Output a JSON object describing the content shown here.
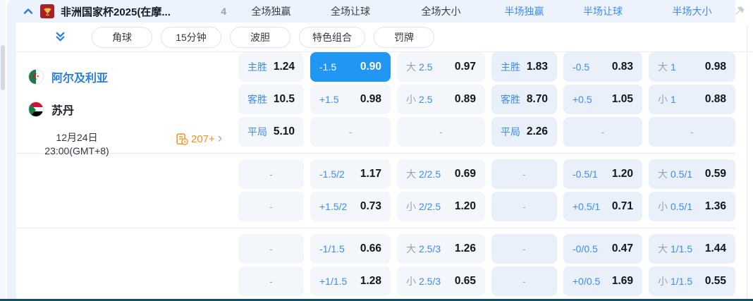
{
  "header": {
    "league": "非洲国家杯2025(在摩...",
    "match_count": "4",
    "columns": [
      {
        "label": "全场独赢",
        "scope": "full"
      },
      {
        "label": "全场让球",
        "scope": "full"
      },
      {
        "label": "全场大小",
        "scope": "full"
      },
      {
        "label": "半场独赢",
        "scope": "half"
      },
      {
        "label": "半场让球",
        "scope": "half"
      },
      {
        "label": "半场大小",
        "scope": "half"
      }
    ]
  },
  "tabs": [
    {
      "label": "角球"
    },
    {
      "label": "15分钟"
    },
    {
      "label": "波胆"
    },
    {
      "label": "特色组合"
    },
    {
      "label": "罚牌"
    }
  ],
  "match": {
    "home_team": "阿尔及利亚",
    "away_team": "苏丹",
    "date": "12月24日",
    "time": "23:00(GMT+8)",
    "more_markets": "207+"
  },
  "colors": {
    "selected_cell": "#2196f3",
    "label_blue": "#3d8bf8",
    "more_orange": "#f78f1e",
    "topbar_bg": "#edf3fc"
  },
  "odds_groups": [
    {
      "rows": [
        [
          {
            "label": "主胜",
            "value": "1.24"
          },
          {
            "label": "-1.5",
            "value": "0.90",
            "selected": true
          },
          {
            "prefix": "大",
            "label": "2.5",
            "value": "0.97"
          },
          {
            "label": "主胜",
            "value": "1.83"
          },
          {
            "label": "-0.5",
            "value": "0.83"
          },
          {
            "prefix": "大",
            "label": "1",
            "value": "0.98"
          }
        ],
        [
          {
            "label": "客胜",
            "value": "10.5"
          },
          {
            "label": "+1.5",
            "value": "0.98"
          },
          {
            "prefix": "小",
            "label": "2.5",
            "value": "0.89"
          },
          {
            "label": "客胜",
            "value": "8.70"
          },
          {
            "label": "+0.5",
            "value": "1.05"
          },
          {
            "prefix": "小",
            "label": "1",
            "value": "0.88"
          }
        ],
        [
          {
            "label": "平局",
            "value": "5.10"
          },
          {
            "dash": true
          },
          {
            "dash": true
          },
          {
            "label": "平局",
            "value": "2.26"
          },
          {
            "dash": true
          },
          {
            "dash": true
          }
        ]
      ]
    },
    {
      "rows": [
        [
          {
            "dash": true
          },
          {
            "label": "-1.5/2",
            "value": "1.17"
          },
          {
            "prefix": "大",
            "label": "2/2.5",
            "value": "0.69"
          },
          {
            "dash": true
          },
          {
            "label": "-0.5/1",
            "value": "1.20"
          },
          {
            "prefix": "大",
            "label": "0.5/1",
            "value": "0.59"
          }
        ],
        [
          {
            "dash": true
          },
          {
            "label": "+1.5/2",
            "value": "0.73"
          },
          {
            "prefix": "小",
            "label": "2/2.5",
            "value": "1.20"
          },
          {
            "dash": true
          },
          {
            "label": "+0.5/1",
            "value": "0.71"
          },
          {
            "prefix": "小",
            "label": "0.5/1",
            "value": "1.36"
          }
        ]
      ]
    },
    {
      "rows": [
        [
          {
            "dash": true
          },
          {
            "label": "-1/1.5",
            "value": "0.66"
          },
          {
            "prefix": "大",
            "label": "2.5/3",
            "value": "1.26"
          },
          {
            "dash": true
          },
          {
            "label": "-0/0.5",
            "value": "0.47"
          },
          {
            "prefix": "大",
            "label": "1/1.5",
            "value": "1.44"
          }
        ],
        [
          {
            "dash": true
          },
          {
            "label": "+1/1.5",
            "value": "1.28"
          },
          {
            "prefix": "小",
            "label": "2.5/3",
            "value": "0.65"
          },
          {
            "dash": true
          },
          {
            "label": "+0/0.5",
            "value": "1.69"
          },
          {
            "prefix": "小",
            "label": "1/1.5",
            "value": "0.55"
          }
        ]
      ]
    }
  ]
}
